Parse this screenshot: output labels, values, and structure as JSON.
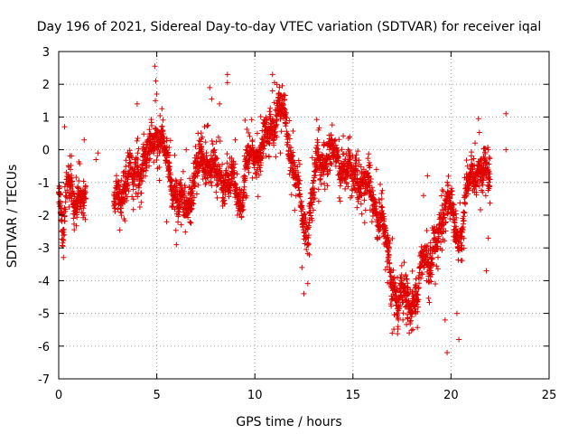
{
  "chart_data": {
    "type": "scatter",
    "title": "Day 196 of 2021, Sidereal Day-to-day VTEC variation (SDTVAR) for receiver iqal",
    "xlabel": "GPS time / hours",
    "ylabel": "SDTVAR / TECUs",
    "xlim": [
      0,
      25
    ],
    "ylim": [
      -7,
      3
    ],
    "xticks": [
      0,
      5,
      10,
      15,
      20,
      25
    ],
    "yticks": [
      -7,
      -6,
      -5,
      -4,
      -3,
      -2,
      -1,
      0,
      1,
      2,
      3
    ],
    "grid": true,
    "marker": "+",
    "color": "#e00000",
    "series": [
      {
        "name": "SDTVAR",
        "trace": [
          [
            0.0,
            -1.5
          ],
          [
            0.1,
            -1.8
          ],
          [
            0.2,
            -3.0
          ],
          [
            0.3,
            -2.5
          ],
          [
            0.4,
            -1.2
          ],
          [
            0.5,
            -0.6
          ],
          [
            0.6,
            -0.8
          ],
          [
            0.8,
            -1.6
          ],
          [
            1.0,
            -1.8
          ],
          [
            1.2,
            -1.5
          ],
          [
            1.4,
            -1.4
          ],
          [
            2.8,
            -1.6
          ],
          [
            3.0,
            -1.5
          ],
          [
            3.4,
            -1.0
          ],
          [
            3.8,
            -0.8
          ],
          [
            4.1,
            -0.5
          ],
          [
            4.5,
            -0.3
          ],
          [
            4.8,
            0.4
          ],
          [
            5.0,
            0.5
          ],
          [
            5.2,
            0.3
          ],
          [
            5.5,
            -0.4
          ],
          [
            5.9,
            -1.3
          ],
          [
            6.3,
            -1.8
          ],
          [
            6.7,
            -1.5
          ],
          [
            7.0,
            -0.6
          ],
          [
            7.3,
            -0.3
          ],
          [
            7.6,
            -0.4
          ],
          [
            8.0,
            -0.7
          ],
          [
            8.3,
            -0.9
          ],
          [
            8.6,
            -1.0
          ],
          [
            8.9,
            -1.1
          ],
          [
            9.1,
            -1.3
          ],
          [
            9.3,
            -1.5
          ],
          [
            9.6,
            -0.5
          ],
          [
            9.8,
            -0.2
          ],
          [
            10.2,
            -0.1
          ],
          [
            10.6,
            0.3
          ],
          [
            10.9,
            0.8
          ],
          [
            11.2,
            1.3
          ],
          [
            11.5,
            1.1
          ],
          [
            11.7,
            0.3
          ],
          [
            11.9,
            -0.3
          ],
          [
            12.1,
            -0.9
          ],
          [
            12.3,
            -1.6
          ],
          [
            12.5,
            -2.3
          ],
          [
            12.7,
            -2.4
          ],
          [
            12.9,
            -1.5
          ],
          [
            13.1,
            -0.7
          ],
          [
            13.3,
            -0.5
          ],
          [
            13.6,
            -0.2
          ],
          [
            13.9,
            -0.1
          ],
          [
            14.2,
            -0.3
          ],
          [
            14.5,
            -0.5
          ],
          [
            14.8,
            -0.7
          ],
          [
            15.1,
            -0.8
          ],
          [
            15.4,
            -0.9
          ],
          [
            15.7,
            -1.1
          ],
          [
            16.0,
            -1.3
          ],
          [
            16.3,
            -2.0
          ],
          [
            16.6,
            -2.6
          ],
          [
            16.9,
            -3.5
          ],
          [
            17.1,
            -4.2
          ],
          [
            17.3,
            -4.9
          ],
          [
            17.5,
            -4.5
          ],
          [
            17.7,
            -4.2
          ],
          [
            17.9,
            -4.6
          ],
          [
            18.1,
            -4.8
          ],
          [
            18.3,
            -4.6
          ],
          [
            18.6,
            -2.8
          ],
          [
            18.8,
            -3.3
          ],
          [
            19.0,
            -3.6
          ],
          [
            19.2,
            -3.0
          ],
          [
            19.4,
            -2.5
          ],
          [
            19.6,
            -1.8
          ],
          [
            19.8,
            -1.4
          ],
          [
            20.0,
            -1.8
          ],
          [
            20.2,
            -2.3
          ],
          [
            20.4,
            -2.8
          ],
          [
            20.6,
            -2.2
          ],
          [
            20.8,
            -1.3
          ],
          [
            21.0,
            -1.0
          ],
          [
            21.2,
            -0.8
          ],
          [
            21.4,
            -0.6
          ],
          [
            21.6,
            -0.7
          ],
          [
            21.8,
            -0.8
          ],
          [
            22.0,
            -0.9
          ]
        ],
        "outliers": [
          [
            0.3,
            0.7
          ],
          [
            4.9,
            2.55
          ],
          [
            4.95,
            2.1
          ],
          [
            8.6,
            2.3
          ],
          [
            8.6,
            2.05
          ],
          [
            7.7,
            1.9
          ],
          [
            7.8,
            1.55
          ],
          [
            8.2,
            1.4
          ],
          [
            10.9,
            2.3
          ],
          [
            11.0,
            2.05
          ],
          [
            9.5,
            0.9
          ],
          [
            5.0,
            1.7
          ],
          [
            5.5,
            -2.2
          ],
          [
            6.0,
            -2.9
          ],
          [
            4.0,
            1.4
          ],
          [
            12.5,
            -4.4
          ],
          [
            12.4,
            -3.6
          ],
          [
            17.0,
            -5.6
          ],
          [
            17.3,
            -5.4
          ],
          [
            19.8,
            -6.2
          ],
          [
            19.7,
            -5.2
          ],
          [
            20.4,
            -5.8
          ],
          [
            20.3,
            -5.0
          ],
          [
            21.8,
            -3.7
          ],
          [
            21.9,
            -2.7
          ],
          [
            21.4,
            0.95
          ],
          [
            22.8,
            1.1
          ],
          [
            22.8,
            0.0
          ],
          [
            21.9,
            0.0
          ],
          [
            19.2,
            -4.1
          ],
          [
            18.6,
            -1.4
          ],
          [
            18.8,
            -0.8
          ],
          [
            1.9,
            -0.3
          ],
          [
            2.0,
            -0.1
          ],
          [
            1.3,
            0.3
          ],
          [
            0.6,
            -0.6
          ],
          [
            11.3,
            -0.1
          ],
          [
            13.7,
            -1.1
          ],
          [
            14.4,
            -0.9
          ],
          [
            16.2,
            -0.6
          ],
          [
            7.1,
            0.5
          ],
          [
            6.5,
            0.0
          ],
          [
            9.0,
            0.3
          ],
          [
            3.3,
            -0.8
          ]
        ]
      }
    ]
  }
}
